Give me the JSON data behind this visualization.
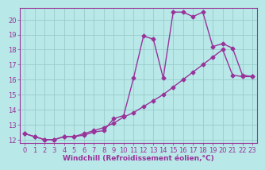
{
  "line1_x": [
    0,
    1,
    2,
    3,
    4,
    5,
    6,
    7,
    8,
    9,
    10,
    11,
    12,
    13,
    14,
    15,
    16,
    17,
    18,
    19,
    20,
    21,
    22,
    23
  ],
  "line1_y": [
    12.4,
    12.2,
    12.0,
    12.0,
    12.2,
    12.2,
    12.3,
    12.5,
    12.6,
    13.4,
    13.6,
    16.1,
    18.9,
    18.7,
    16.1,
    20.5,
    20.5,
    20.2,
    20.5,
    18.2,
    18.4,
    18.1,
    16.3,
    16.2
  ],
  "line2_x": [
    0,
    1,
    2,
    3,
    4,
    5,
    6,
    7,
    8,
    9,
    10,
    11,
    12,
    13,
    14,
    15,
    16,
    17,
    18,
    19,
    20,
    21,
    22,
    23
  ],
  "line2_y": [
    12.4,
    12.2,
    12.0,
    12.0,
    12.2,
    12.2,
    12.4,
    12.6,
    12.8,
    13.1,
    13.5,
    13.8,
    14.2,
    14.6,
    15.0,
    15.5,
    16.0,
    16.5,
    17.0,
    17.5,
    18.0,
    16.3,
    16.2,
    16.2
  ],
  "line_color": "#993399",
  "background_color": "#b8e8e8",
  "grid_color": "#99cccc",
  "xlabel": "Windchill (Refroidissement éolien,°C)",
  "xlim": [
    -0.5,
    23.5
  ],
  "ylim": [
    11.75,
    20.8
  ],
  "yticks": [
    12,
    13,
    14,
    15,
    16,
    17,
    18,
    19,
    20
  ],
  "xticks": [
    0,
    1,
    2,
    3,
    4,
    5,
    6,
    7,
    8,
    9,
    10,
    11,
    12,
    13,
    14,
    15,
    16,
    17,
    18,
    19,
    20,
    21,
    22,
    23
  ],
  "marker": "D",
  "marker_size": 2.5,
  "line_width": 1.0,
  "xlabel_fontsize": 6.5,
  "tick_fontsize": 6.0,
  "tick_color": "#993399",
  "label_color": "#993399",
  "spine_color": "#993399"
}
